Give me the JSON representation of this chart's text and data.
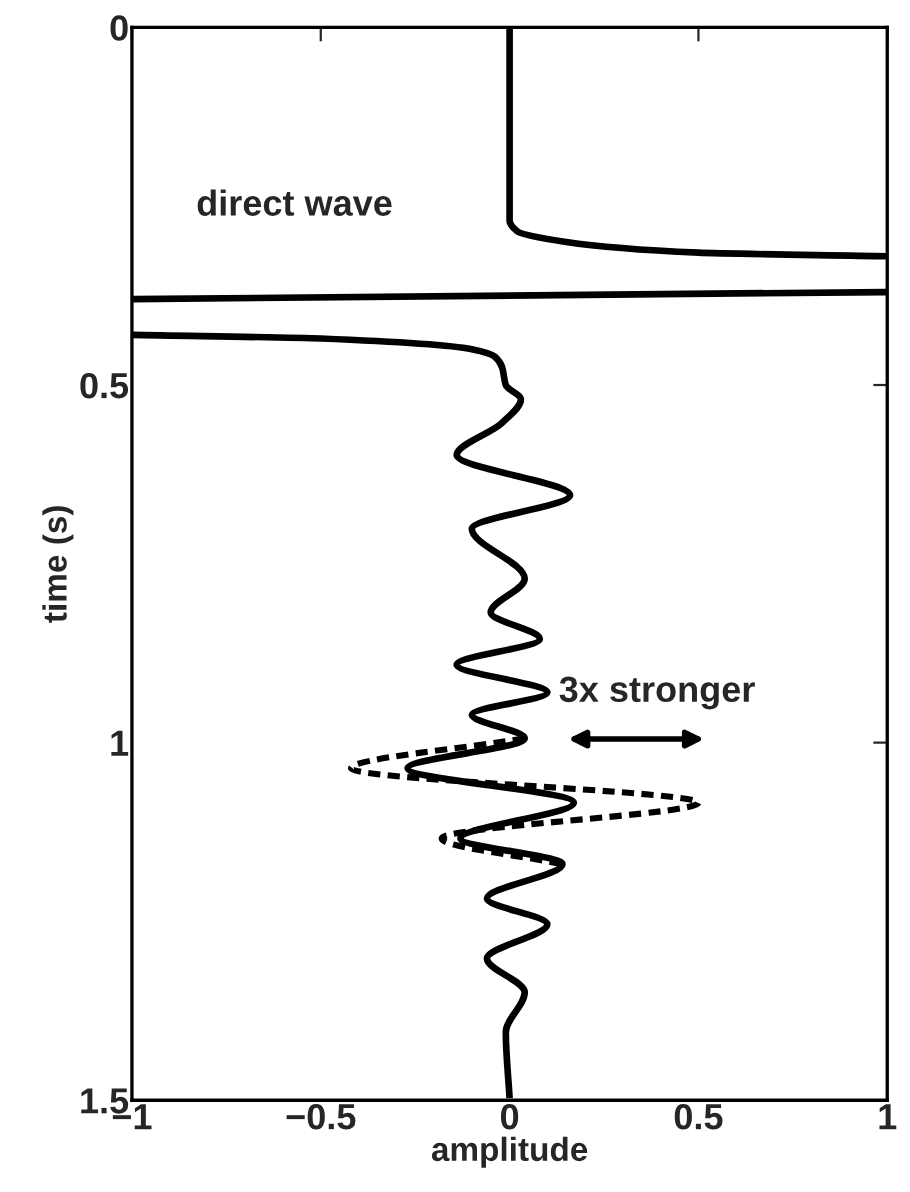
{
  "chart_data": {
    "type": "line",
    "orientation": "horizontal",
    "xlabel": "amplitude",
    "ylabel": "time (s)",
    "xlim": [
      -1,
      1
    ],
    "ylim": [
      1.5,
      0
    ],
    "xticks": [
      {
        "value": -1,
        "label": "−1"
      },
      {
        "value": -0.5,
        "label": "−0.5"
      },
      0,
      0.5,
      1
    ],
    "yticks": [
      0,
      0.5,
      1,
      1.5
    ],
    "grid": false,
    "legend": false,
    "marker": "none",
    "annotations": [
      "direct wave",
      "3x stronger"
    ],
    "series": [
      {
        "color": "#000000",
        "line_style": "solid",
        "values": [
          0,
          0,
          0.02,
          0.15,
          0.5,
          1.0,
          null,
          1.0,
          -1.0,
          null,
          -1.0,
          -0.5,
          -0.1,
          -0.04,
          -0.02,
          -0.01,
          0.03,
          -0.02,
          -0.14,
          0.16,
          -0.1,
          0.04,
          -0.05,
          0.08,
          -0.14,
          0.1,
          -0.1,
          0.04,
          -0.27,
          0.17,
          -0.13,
          0.14,
          -0.06,
          0.1,
          -0.06,
          0.04,
          -0.01,
          0
        ],
        "x": [
          0,
          0.27,
          0.285,
          0.3,
          0.315,
          0.32,
          null,
          0.37,
          0.38,
          null,
          0.43,
          0.435,
          0.45,
          0.46,
          0.475,
          0.5,
          0.52,
          0.553,
          0.598,
          0.654,
          0.701,
          0.771,
          0.818,
          0.855,
          0.891,
          0.93,
          0.961,
          0.994,
          1.036,
          1.084,
          1.134,
          1.17,
          1.218,
          1.254,
          1.302,
          1.349,
          1.405,
          1.497
        ]
      },
      {
        "color": "#000000",
        "line_style": "dashed",
        "values": [
          0.04,
          -0.42,
          0.5,
          -0.18,
          0.14
        ],
        "x": [
          0.994,
          1.036,
          1.084,
          1.134,
          1.17
        ]
      }
    ]
  }
}
